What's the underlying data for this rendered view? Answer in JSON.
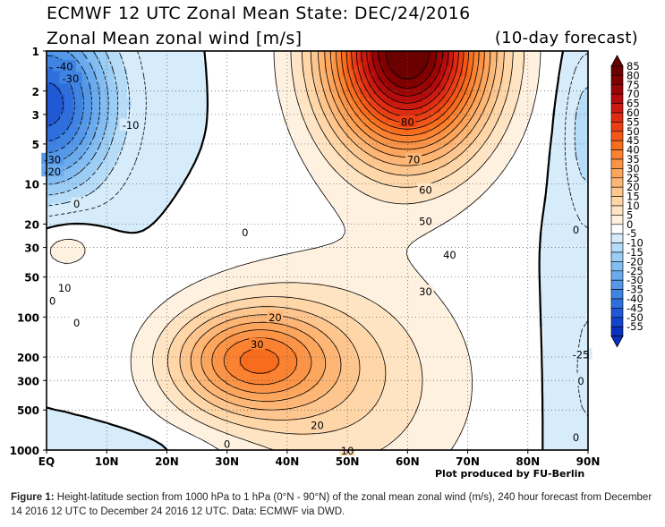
{
  "header": {
    "title": "ECMWF 12 UTC Zonal Mean State: DEC/24/2016",
    "subtitle": "Zonal Mean zonal wind [m/s]",
    "forecast": "(10-day forecast)"
  },
  "credit": "Plot produced by FU-Berlin",
  "caption": {
    "label": "Figure 1:",
    "text": "Height-latitude section from 1000 hPa to 1 hPa (0°N - 90°N) of the zonal mean zonal wind (m/s), 240 hour forecast from December 14 2016 12 UTC to December 24 2016 12 UTC. Data: ECMWF via DWD."
  },
  "chart_data": {
    "type": "heatmap",
    "title": "Zonal Mean zonal wind [m/s]",
    "x": {
      "ticks": [
        0,
        10,
        20,
        30,
        40,
        50,
        60,
        70,
        80,
        90
      ],
      "tick_labels": [
        "EQ",
        "10N",
        "20N",
        "30N",
        "40N",
        "50N",
        "60N",
        "70N",
        "80N",
        "90N"
      ],
      "range": [
        0,
        90
      ]
    },
    "y": {
      "scale": "log",
      "reversed": true,
      "ticks": [
        1,
        2,
        3,
        5,
        10,
        20,
        30,
        50,
        100,
        200,
        300,
        500,
        1000
      ],
      "range": [
        1,
        1000
      ]
    },
    "grid": true,
    "colorbar": {
      "levels": [
        85,
        80,
        75,
        70,
        65,
        60,
        55,
        50,
        45,
        40,
        35,
        30,
        25,
        20,
        15,
        10,
        5,
        0,
        -5,
        -10,
        -15,
        -20,
        -25,
        -30,
        -35,
        -40,
        -45,
        -50,
        -55
      ],
      "colors": [
        "#6b0000",
        "#800000",
        "#9a0505",
        "#b40c0c",
        "#cc1a10",
        "#de2c12",
        "#ea3f14",
        "#f35718",
        "#f86c1e",
        "#fa8230",
        "#fb9447",
        "#fca55c",
        "#fdb675",
        "#fec68f",
        "#fed6a8",
        "#fee4c2",
        "#fff1e0",
        "#ffffff",
        "#d6ecfb",
        "#b7dcf8",
        "#9ccdf5",
        "#83bdf1",
        "#6babed",
        "#5598e8",
        "#4084e3",
        "#2f6fdd",
        "#2059d5",
        "#1344cc",
        "#0a30c0"
      ]
    },
    "contour_labels": [
      {
        "lat": 3,
        "p": 1.3,
        "text": "-40"
      },
      {
        "lat": 4,
        "p": 1.6,
        "text": "-30"
      },
      {
        "lat": 14,
        "p": 3.6,
        "text": "-10"
      },
      {
        "lat": 1,
        "p": 6.5,
        "text": "-30"
      },
      {
        "lat": 1,
        "p": 8.0,
        "text": "-20"
      },
      {
        "lat": 5,
        "p": 14,
        "text": "0"
      },
      {
        "lat": 3,
        "p": 60,
        "text": "10"
      },
      {
        "lat": 1,
        "p": 75,
        "text": "0"
      },
      {
        "lat": 5,
        "p": 110,
        "text": "0"
      },
      {
        "lat": 33,
        "p": 23,
        "text": "0"
      },
      {
        "lat": 38,
        "p": 100,
        "text": "20"
      },
      {
        "lat": 35,
        "p": 160,
        "text": "30"
      },
      {
        "lat": 45,
        "p": 650,
        "text": "20"
      },
      {
        "lat": 30,
        "p": 900,
        "text": "0"
      },
      {
        "lat": 50,
        "p": 1010,
        "text": "10"
      },
      {
        "lat": 60,
        "p": 3.4,
        "text": "80"
      },
      {
        "lat": 61,
        "p": 6.5,
        "text": "70"
      },
      {
        "lat": 63,
        "p": 11,
        "text": "60"
      },
      {
        "lat": 63,
        "p": 19,
        "text": "50"
      },
      {
        "lat": 67,
        "p": 34,
        "text": "40"
      },
      {
        "lat": 63,
        "p": 64,
        "text": "30"
      },
      {
        "lat": 88,
        "p": 22,
        "text": "0"
      },
      {
        "lat": 89,
        "p": 190,
        "text": "-25"
      },
      {
        "lat": 89,
        "p": 300,
        "text": "0"
      },
      {
        "lat": 88,
        "p": 800,
        "text": "0"
      }
    ]
  }
}
